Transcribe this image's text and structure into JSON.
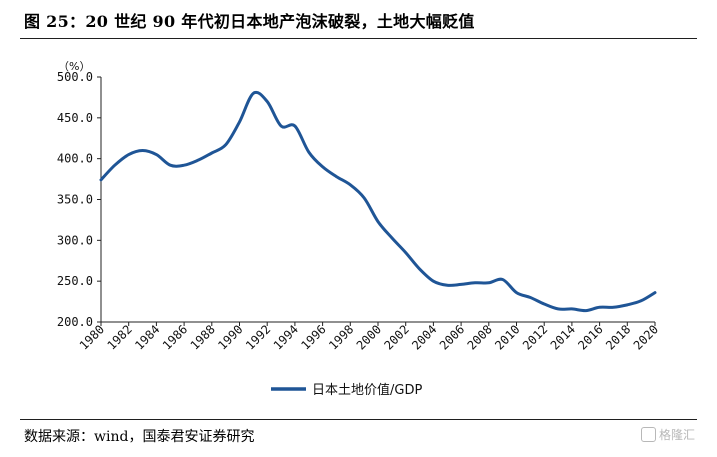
{
  "figure": {
    "title": "图 25：20 世纪 90 年代初日本地产泡沫破裂，土地大幅贬值",
    "source": "数据来源：wind，国泰君安证券研究",
    "watermark": "格隆汇"
  },
  "colors": {
    "line": "#1f5596",
    "axis": "#222222"
  },
  "chart_data": {
    "type": "line",
    "title": "",
    "unit_label": "（%）",
    "xlabel": "",
    "ylabel": "",
    "ylim": [
      200,
      500
    ],
    "xlim": [
      1980,
      2020
    ],
    "yticks": [
      200,
      250,
      300,
      350,
      400,
      450,
      500
    ],
    "ytick_labels": [
      "200.0",
      "250.0",
      "300.0",
      "350.0",
      "400.0",
      "450.0",
      "500.0"
    ],
    "xticks": [
      1980,
      1982,
      1984,
      1986,
      1988,
      1990,
      1992,
      1994,
      1996,
      1998,
      2000,
      2002,
      2004,
      2006,
      2008,
      2010,
      2012,
      2014,
      2016,
      2018,
      2020
    ],
    "xtick_labels": [
      "1980",
      "1982",
      "1984",
      "1986",
      "1988",
      "1990",
      "1992",
      "1994",
      "1996",
      "1998",
      "2000",
      "2002",
      "2004",
      "2006",
      "2008",
      "2010",
      "2012",
      "2014",
      "2016",
      "2018",
      "2020"
    ],
    "grid": false,
    "legend": "bottom",
    "series": [
      {
        "name": "日本土地价值/GDP",
        "x": [
          1980,
          1981,
          1982,
          1983,
          1984,
          1985,
          1986,
          1987,
          1988,
          1989,
          1990,
          1991,
          1992,
          1993,
          1994,
          1995,
          1996,
          1997,
          1998,
          1999,
          2000,
          2001,
          2002,
          2003,
          2004,
          2005,
          2006,
          2007,
          2008,
          2009,
          2010,
          2011,
          2012,
          2013,
          2014,
          2015,
          2016,
          2017,
          2018,
          2019,
          2020
        ],
        "values": [
          374,
          392,
          405,
          410,
          405,
          392,
          392,
          398,
          407,
          417,
          445,
          480,
          470,
          440,
          440,
          408,
          390,
          378,
          368,
          352,
          323,
          303,
          285,
          265,
          250,
          245,
          246,
          248,
          248,
          252,
          236,
          230,
          222,
          216,
          216,
          214,
          218,
          218,
          221,
          226,
          236
        ]
      }
    ]
  }
}
